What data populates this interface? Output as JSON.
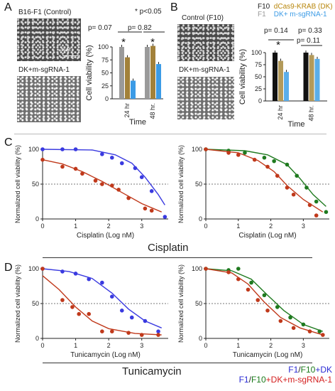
{
  "panelA": {
    "letter": "A",
    "img_top_label": "B16-F1 (Control)",
    "img_bottom_label": "DK+m-sgRNA-1",
    "scale_label": "5μM",
    "sig_note": "* p<0.05",
    "p1": "p= 0.07",
    "p2": "p= 0.82",
    "star": "*",
    "ylabel": "Cell viability (%)",
    "xlabel": "Time",
    "yticks": [
      "0",
      "25",
      "50",
      "75",
      "100"
    ],
    "groups": [
      "24 hr",
      "48 hr."
    ]
  },
  "panelB": {
    "letter": "B",
    "img_top_label": "Control (F10)",
    "img_bottom_label": "DK+m-sgRNA-1",
    "legend": [
      {
        "key": "F10",
        "label": "dCas9-KRAB (DK)",
        "color": "#b8860b"
      },
      {
        "key": "F1",
        "label": "DK+ m-sgRNA-1",
        "color": "#3b9be6"
      }
    ],
    "p1": "p= 0.14",
    "p2": "p= 0.33",
    "p3": "p= 0.11",
    "star": "*",
    "ylabel": "Cell viability (%)",
    "xlabel": "Time",
    "yticks": [
      "0",
      "25",
      "50",
      "75",
      "100"
    ],
    "groups": [
      "24 hr",
      "48 hr."
    ]
  },
  "panelC": {
    "letter": "C",
    "drug": "Cisplatin"
  },
  "panelD": {
    "letter": "D",
    "drug": "Tunicamycin"
  },
  "bottom_legend": {
    "line1": [
      {
        "t": "F1",
        "c": "#2a2ad4"
      },
      {
        "t": "/",
        "c": "#222"
      },
      {
        "t": "F10",
        "c": "#1a7a1a"
      },
      {
        "t": "+DK",
        "c": "#2a2ad4"
      }
    ],
    "line2": [
      {
        "t": "F1",
        "c": "#2a2ad4"
      },
      {
        "t": "/",
        "c": "#222"
      },
      {
        "t": "F10",
        "c": "#1a7a1a"
      },
      {
        "t": "+DK+m-sgRNA-1",
        "c": "#d42020"
      }
    ]
  },
  "colors": {
    "gray": "#9a9a9a",
    "olive": "#a2813a",
    "blue": "#3b9be6",
    "black": "#111111",
    "tan": "#b39a5a",
    "lightblue": "#5aaeea",
    "curveBlue": "#3a3ae0",
    "curveRed": "#c0391b",
    "curveGreen": "#1f7a1f"
  },
  "chart_data": [
    {
      "id": "A-bar",
      "type": "bar",
      "categories": [
        "24 hr",
        "48 hr."
      ],
      "series": [
        {
          "name": "B16-F1 (Control)",
          "values": [
            100,
            100
          ]
        },
        {
          "name": "",
          "values": [
            80,
            102
          ]
        },
        {
          "name": "",
          "values": [
            35,
            67
          ]
        }
      ],
      "ylabel": "Cell viability (%)",
      "xlabel": "Time",
      "ylim": [
        0,
        100
      ]
    },
    {
      "id": "B-bar",
      "type": "bar",
      "categories": [
        "24 hr",
        "48 hr."
      ],
      "series": [
        {
          "name": "Control (F10)",
          "values": [
            100,
            100
          ]
        },
        {
          "name": "dCas9-KRAB (DK)",
          "values": [
            83,
            95
          ]
        },
        {
          "name": "DK+ m-sgRNA-1",
          "values": [
            60,
            87
          ]
        }
      ],
      "ylabel": "Cell viability (%)",
      "xlabel": "Time",
      "ylim": [
        0,
        100
      ]
    },
    {
      "id": "C1",
      "type": "scatter",
      "xlabel": "Cisplatin (Log nM)",
      "ylabel": "Normalized cell viability (%)",
      "xlim": [
        0,
        3.8
      ],
      "ylim": [
        0,
        100
      ],
      "xticks": [
        0,
        1,
        2,
        3
      ],
      "yticks": [
        0,
        50,
        100
      ],
      "series": [
        {
          "color": "#3a3ae0",
          "points": [
            [
              0,
              100
            ],
            [
              0.6,
              100
            ],
            [
              1.0,
              100
            ],
            [
              1.8,
              93
            ],
            [
              2.1,
              88
            ],
            [
              2.4,
              80
            ],
            [
              2.8,
              73
            ],
            [
              3.0,
              60
            ],
            [
              3.3,
              40
            ],
            [
              3.7,
              3
            ]
          ],
          "curve": [
            [
              0,
              100
            ],
            [
              1.5,
              99
            ],
            [
              2.2,
              92
            ],
            [
              2.7,
              80
            ],
            [
              3.1,
              60
            ],
            [
              3.5,
              35
            ],
            [
              3.7,
              20
            ]
          ]
        },
        {
          "color": "#c0391b",
          "points": [
            [
              0,
              85
            ],
            [
              0.6,
              75
            ],
            [
              1.0,
              72
            ],
            [
              1.2,
              65
            ],
            [
              1.6,
              55
            ],
            [
              1.8,
              50
            ],
            [
              2.1,
              48
            ],
            [
              2.3,
              42
            ],
            [
              2.6,
              30
            ],
            [
              3.1,
              15
            ],
            [
              3.3,
              12
            ]
          ],
          "curve": [
            [
              0,
              85
            ],
            [
              0.6,
              79
            ],
            [
              1.2,
              68
            ],
            [
              1.8,
              54
            ],
            [
              2.4,
              38
            ],
            [
              3.0,
              22
            ],
            [
              3.6,
              10
            ]
          ]
        }
      ],
      "guide_y": 50
    },
    {
      "id": "C2",
      "type": "scatter",
      "xlabel": "Cisplatin (Log nM)",
      "ylabel": "Normalized cell viability (%)",
      "xlim": [
        0,
        3.8
      ],
      "ylim": [
        0,
        100
      ],
      "xticks": [
        0,
        1,
        2,
        3
      ],
      "yticks": [
        0,
        50,
        100
      ],
      "series": [
        {
          "color": "#1f7a1f",
          "points": [
            [
              0,
              100
            ],
            [
              0.7,
              98
            ],
            [
              1.2,
              95
            ],
            [
              1.8,
              88
            ],
            [
              2.1,
              83
            ],
            [
              2.5,
              78
            ],
            [
              2.8,
              62
            ],
            [
              3.1,
              45
            ],
            [
              3.4,
              25
            ],
            [
              3.7,
              10
            ]
          ],
          "curve": [
            [
              0,
              100
            ],
            [
              1.2,
              98
            ],
            [
              1.9,
              92
            ],
            [
              2.5,
              78
            ],
            [
              2.9,
              58
            ],
            [
              3.3,
              35
            ],
            [
              3.7,
              18
            ]
          ]
        },
        {
          "color": "#c0391b",
          "points": [
            [
              0,
              100
            ],
            [
              0.7,
              95
            ],
            [
              1.0,
              92
            ],
            [
              1.5,
              85
            ],
            [
              1.9,
              75
            ],
            [
              2.2,
              62
            ],
            [
              2.5,
              45
            ],
            [
              2.7,
              35
            ],
            [
              3.2,
              20
            ],
            [
              3.4,
              5
            ]
          ],
          "curve": [
            [
              0,
              100
            ],
            [
              1.0,
              95
            ],
            [
              1.6,
              84
            ],
            [
              2.1,
              68
            ],
            [
              2.5,
              48
            ],
            [
              3.0,
              28
            ],
            [
              3.6,
              10
            ]
          ]
        }
      ],
      "guide_y": 50
    },
    {
      "id": "D1",
      "type": "scatter",
      "xlabel": "Tunicamycin (Log nM)",
      "ylabel": "Normalized cell viability (%)",
      "xlim": [
        0,
        3.8
      ],
      "ylim": [
        0,
        100
      ],
      "xticks": [
        0,
        1,
        2,
        3
      ],
      "yticks": [
        0,
        50,
        100
      ],
      "series": [
        {
          "color": "#3a3ae0",
          "points": [
            [
              0,
              100
            ],
            [
              0.6,
              96
            ],
            [
              1.0,
              93
            ],
            [
              1.4,
              85
            ],
            [
              1.8,
              80
            ],
            [
              2.1,
              60
            ],
            [
              2.4,
              40
            ],
            [
              2.7,
              30
            ],
            [
              3.1,
              25
            ],
            [
              3.5,
              10
            ]
          ],
          "curve": [
            [
              0,
              100
            ],
            [
              0.8,
              96
            ],
            [
              1.5,
              86
            ],
            [
              2.1,
              65
            ],
            [
              2.6,
              42
            ],
            [
              3.1,
              25
            ],
            [
              3.6,
              15
            ]
          ]
        },
        {
          "color": "#c0391b",
          "points": [
            [
              0,
              100
            ],
            [
              0.6,
              55
            ],
            [
              0.9,
              45
            ],
            [
              1.1,
              35
            ],
            [
              1.4,
              35
            ],
            [
              1.8,
              10
            ],
            [
              2.1,
              10
            ],
            [
              2.6,
              8
            ],
            [
              3.0,
              5
            ],
            [
              3.5,
              5
            ]
          ],
          "curve": [
            [
              0,
              90
            ],
            [
              0.5,
              70
            ],
            [
              1.0,
              45
            ],
            [
              1.5,
              25
            ],
            [
              2.0,
              14
            ],
            [
              2.8,
              7
            ],
            [
              3.6,
              5
            ]
          ]
        }
      ],
      "guide_y": 50
    },
    {
      "id": "D2",
      "type": "scatter",
      "xlabel": "Tunicamycin (Log nM)",
      "ylabel": "Normalized cell viability (%)",
      "xlim": [
        0,
        3.8
      ],
      "ylim": [
        0,
        100
      ],
      "xticks": [
        0,
        1,
        2,
        3
      ],
      "yticks": [
        0,
        50,
        100
      ],
      "series": [
        {
          "color": "#1f7a1f",
          "points": [
            [
              0,
              100
            ],
            [
              0.7,
              98
            ],
            [
              1.0,
              100
            ],
            [
              1.4,
              80
            ],
            [
              1.8,
              62
            ],
            [
              2.2,
              45
            ],
            [
              2.6,
              30
            ],
            [
              3.0,
              20
            ],
            [
              3.5,
              10
            ]
          ],
          "curve": [
            [
              0,
              100
            ],
            [
              0.8,
              97
            ],
            [
              1.4,
              85
            ],
            [
              1.9,
              62
            ],
            [
              2.4,
              40
            ],
            [
              3.0,
              20
            ],
            [
              3.6,
              10
            ]
          ]
        },
        {
          "color": "#c0391b",
          "points": [
            [
              0,
              100
            ],
            [
              0.7,
              95
            ],
            [
              1.0,
              85
            ],
            [
              1.3,
              70
            ],
            [
              1.6,
              55
            ],
            [
              1.9,
              40
            ],
            [
              2.3,
              25
            ],
            [
              2.7,
              15
            ],
            [
              3.2,
              10
            ],
            [
              3.6,
              5
            ]
          ],
          "curve": [
            [
              0,
              100
            ],
            [
              0.8,
              94
            ],
            [
              1.3,
              78
            ],
            [
              1.8,
              52
            ],
            [
              2.3,
              30
            ],
            [
              2.9,
              15
            ],
            [
              3.6,
              5
            ]
          ]
        }
      ],
      "guide_y": 50
    }
  ]
}
